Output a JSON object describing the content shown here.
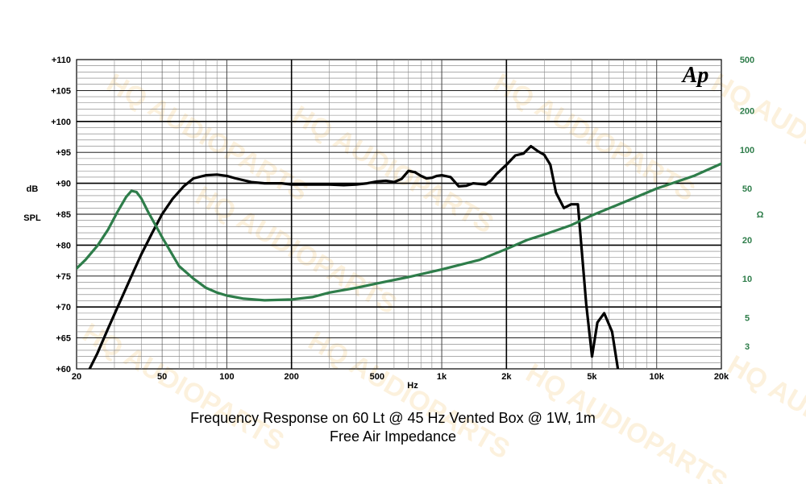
{
  "watermark": "HQ AUDIOPARTS",
  "chart": {
    "logo": "Ap",
    "y_left_label": [
      "dB",
      "SPL"
    ],
    "y_right_label": "Ω",
    "x_label": "Hz",
    "captions": [
      "Frequency Response on 60 Lt @ 45 Hz Vented Box @ 1W, 1m",
      "Free Air Impedance"
    ],
    "left_ticks": [
      "+110",
      "+105",
      "+100",
      "+95",
      "+90",
      "+85",
      "+80",
      "+75",
      "+70",
      "+65",
      "+60"
    ],
    "right_ticks": [
      "500",
      "200",
      "100",
      "50",
      "20",
      "10",
      "5",
      "3"
    ],
    "x_ticks": [
      "20",
      "50",
      "100",
      "200",
      "500",
      "1k",
      "2k",
      "5k",
      "10k",
      "20k"
    ]
  },
  "chart_data": {
    "type": "line",
    "xlabel": "Hz",
    "ylabel": "dB SPL",
    "y2label": "Ω",
    "x_scale": "log",
    "xlim": [
      20,
      20000
    ],
    "ylim": [
      60,
      110
    ],
    "y2lim": [
      2,
      500
    ],
    "y2_scale": "log",
    "grid": true,
    "colors": {
      "spl": "#000000",
      "impedance": "#2e7d4a"
    },
    "series": [
      {
        "axis": "left",
        "values_xy": [
          [
            23,
            60
          ],
          [
            25,
            62.5
          ],
          [
            28,
            66.5
          ],
          [
            32,
            71
          ],
          [
            36,
            75
          ],
          [
            40,
            78.5
          ],
          [
            45,
            82
          ],
          [
            50,
            85
          ],
          [
            56,
            87.5
          ],
          [
            63,
            89.5
          ],
          [
            70,
            90.8
          ],
          [
            80,
            91.3
          ],
          [
            90,
            91.4
          ],
          [
            100,
            91.2
          ],
          [
            110,
            90.8
          ],
          [
            130,
            90.2
          ],
          [
            150,
            90
          ],
          [
            180,
            90
          ],
          [
            200,
            89.8
          ],
          [
            250,
            89.8
          ],
          [
            300,
            89.8
          ],
          [
            350,
            89.7
          ],
          [
            400,
            89.8
          ],
          [
            450,
            90
          ],
          [
            500,
            90.3
          ],
          [
            550,
            90.4
          ],
          [
            600,
            90.2
          ],
          [
            650,
            90.7
          ],
          [
            700,
            92
          ],
          [
            750,
            91.8
          ],
          [
            800,
            91.2
          ],
          [
            850,
            90.8
          ],
          [
            900,
            90.9
          ],
          [
            950,
            91.2
          ],
          [
            1000,
            91.3
          ],
          [
            1100,
            91
          ],
          [
            1200,
            89.5
          ],
          [
            1300,
            89.6
          ],
          [
            1400,
            90
          ],
          [
            1500,
            89.9
          ],
          [
            1600,
            89.8
          ],
          [
            1700,
            90.5
          ],
          [
            1800,
            91.5
          ],
          [
            2000,
            93
          ],
          [
            2200,
            94.5
          ],
          [
            2400,
            94.8
          ],
          [
            2600,
            96
          ],
          [
            2800,
            95.2
          ],
          [
            3000,
            94.6
          ],
          [
            3200,
            93
          ],
          [
            3400,
            88.5
          ],
          [
            3700,
            86
          ],
          [
            4000,
            86.6
          ],
          [
            4300,
            86.6
          ],
          [
            4700,
            70.5
          ],
          [
            5000,
            62
          ],
          [
            5300,
            67.5
          ],
          [
            5700,
            69
          ],
          [
            6200,
            66
          ],
          [
            6600,
            60
          ]
        ]
      },
      {
        "axis": "right",
        "values_xy": [
          [
            20,
            12
          ],
          [
            22,
            14
          ],
          [
            25,
            18
          ],
          [
            28,
            24
          ],
          [
            31,
            33
          ],
          [
            34,
            43
          ],
          [
            36,
            48
          ],
          [
            38,
            47
          ],
          [
            40,
            42
          ],
          [
            43,
            33
          ],
          [
            46,
            27
          ],
          [
            50,
            21
          ],
          [
            55,
            16
          ],
          [
            60,
            12.5
          ],
          [
            70,
            10
          ],
          [
            80,
            8.5
          ],
          [
            90,
            7.8
          ],
          [
            100,
            7.4
          ],
          [
            120,
            7.0
          ],
          [
            150,
            6.8
          ],
          [
            200,
            6.9
          ],
          [
            250,
            7.2
          ],
          [
            300,
            7.8
          ],
          [
            400,
            8.5
          ],
          [
            500,
            9.2
          ],
          [
            700,
            10.3
          ],
          [
            1000,
            11.8
          ],
          [
            1500,
            14
          ],
          [
            2000,
            17
          ],
          [
            2500,
            20
          ],
          [
            3000,
            22
          ],
          [
            4000,
            26
          ],
          [
            5000,
            31
          ],
          [
            7000,
            39
          ],
          [
            10000,
            50
          ],
          [
            15000,
            63
          ],
          [
            20000,
            78
          ],
          [
            22000,
            85
          ]
        ]
      }
    ]
  }
}
